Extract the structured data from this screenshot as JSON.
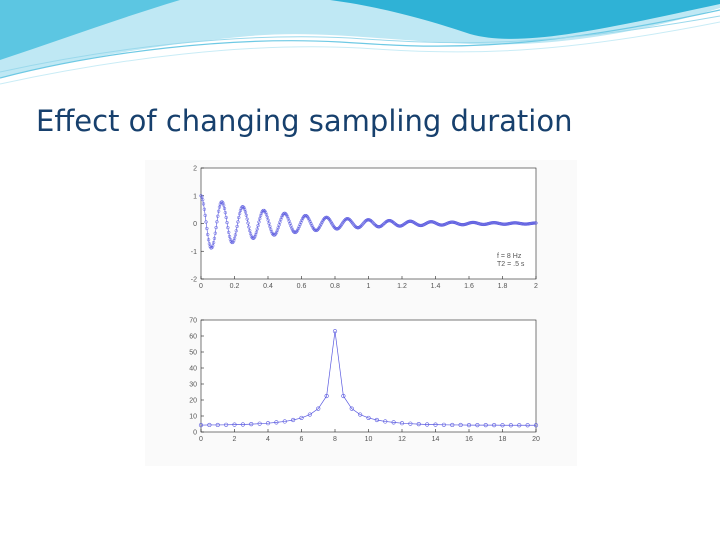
{
  "slide": {
    "title": "Effect of changing sampling duration"
  },
  "colors": {
    "title": "#17406d",
    "banner_dark": "#2fb2d6",
    "banner_light": "#bfe8f4",
    "series": "#5a5ae0"
  },
  "chart_data": [
    {
      "type": "scatter",
      "title": "",
      "xlabel": "",
      "ylabel": "",
      "xlim": [
        0,
        2
      ],
      "ylim": [
        -2,
        2
      ],
      "x_ticks": [
        "0",
        "0.2",
        "0.4",
        "0.6",
        "0.8",
        "1",
        "1.2",
        "1.4",
        "1.6",
        "1.8",
        "2"
      ],
      "y_ticks": [
        "2",
        "1",
        "0",
        "-1",
        "-2"
      ],
      "grid": false,
      "legend": {
        "position": "lower-right",
        "lines": [
          "f = 8 Hz",
          "T2 = .5 s"
        ]
      },
      "signal": {
        "frequency_hz": 8,
        "t2_s": 0.5,
        "initial_amplitude": 1,
        "samples": 400
      }
    },
    {
      "type": "line",
      "title": "",
      "xlabel": "",
      "ylabel": "",
      "xlim": [
        0,
        20
      ],
      "ylim": [
        0,
        70
      ],
      "x_ticks": [
        "0",
        "2",
        "4",
        "6",
        "8",
        "10",
        "12",
        "14",
        "16",
        "18",
        "20"
      ],
      "y_ticks": [
        "70",
        "60",
        "50",
        "40",
        "30",
        "20",
        "10",
        "0"
      ],
      "grid": false,
      "x": [
        0,
        0.5,
        1,
        1.5,
        2,
        2.5,
        3,
        3.5,
        4,
        4.5,
        5,
        5.5,
        6,
        6.5,
        7,
        7.5,
        8,
        8.5,
        9,
        9.5,
        10,
        10.5,
        11,
        11.5,
        12,
        12.5,
        13,
        13.5,
        14,
        14.5,
        15,
        15.5,
        16,
        16.5,
        17,
        17.5,
        18,
        18.5,
        19,
        19.5,
        20
      ],
      "y": [
        4.3,
        4.4,
        4.4,
        4.5,
        4.6,
        4.7,
        4.9,
        5.2,
        5.5,
        6,
        6.6,
        7.5,
        8.8,
        10.9,
        14.6,
        22.5,
        63,
        22.5,
        14.6,
        10.9,
        8.8,
        7.5,
        6.6,
        6,
        5.5,
        5.2,
        4.9,
        4.7,
        4.6,
        4.5,
        4.4,
        4.4,
        4.3,
        4.3,
        4.3,
        4.3,
        4.2,
        4.2,
        4.2,
        4.2,
        4.2
      ]
    }
  ]
}
